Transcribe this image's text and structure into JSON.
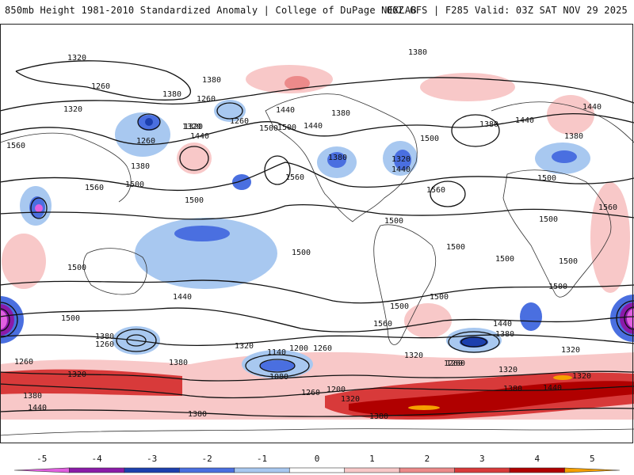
{
  "header": {
    "left_title": "850mb Height 1981-2010 Standardized Anomaly | College of DuPage NEXLAB",
    "right_title": "06Z GFS | F285 Valid: 03Z SAT NOV 29 2025"
  },
  "colorbar": {
    "ticks": [
      "-5",
      "-4",
      "-3",
      "-2",
      "-1",
      "0",
      "1",
      "2",
      "3",
      "4",
      "5"
    ],
    "colors": [
      "#e060e0",
      "#8a1aa8",
      "#1c3fae",
      "#4a6fe0",
      "#a8c8f0",
      "#ffffff",
      "#f8c8c8",
      "#ec8a8a",
      "#d83a3a",
      "#b00000",
      "#f5a000"
    ]
  },
  "contour_labels": [
    "1320",
    "1260",
    "1380",
    "1380",
    "1320",
    "1260",
    "1320",
    "1440",
    "1560",
    "1260",
    "1380",
    "1500",
    "1320",
    "1260",
    "1500",
    "1440",
    "1440",
    "1380",
    "1380",
    "1500",
    "1380",
    "1320",
    "1440",
    "1500",
    "1560",
    "1560",
    "1500",
    "1500",
    "1560",
    "1440",
    "1380",
    "1560",
    "1500",
    "1500",
    "1500",
    "1500",
    "1500",
    "1500",
    "1500",
    "1440",
    "1500",
    "1560",
    "1440",
    "1380",
    "1380",
    "1320",
    "1260",
    "1260",
    "1320",
    "1140",
    "1200",
    "1260",
    "1080",
    "1320",
    "1260",
    "1200",
    "1380",
    "1320",
    "1380",
    "1440",
    "1320",
    "1320",
    "1260",
    "1380",
    "1320",
    "1440",
    "1380",
    "1260",
    "1380",
    "1440",
    "1380",
    "1500",
    "1500",
    "1500"
  ]
}
